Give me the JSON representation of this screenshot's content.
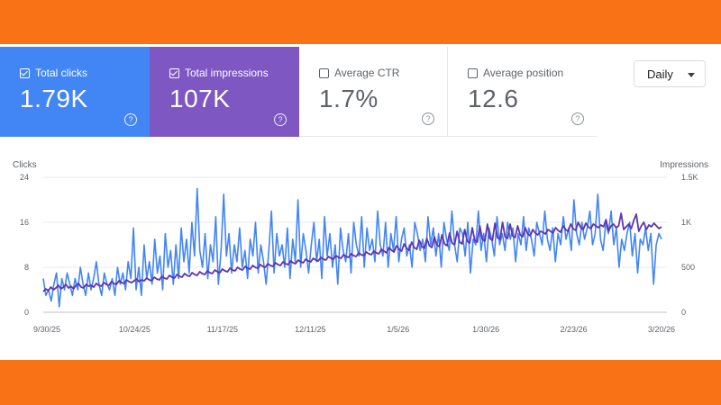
{
  "cards": [
    {
      "label": "Total clicks",
      "value": "1.79K",
      "checked": true
    },
    {
      "label": "Total impressions",
      "value": "107K",
      "checked": true
    },
    {
      "label": "Average CTR",
      "value": "1.7%",
      "checked": false
    },
    {
      "label": "Average position",
      "value": "12.6",
      "checked": false
    }
  ],
  "help_glyph": "?",
  "period_select": {
    "value": "Daily"
  },
  "colors": {
    "clicks": "#4285f4",
    "impressions": "#5e35b1",
    "frame": "#f97316"
  },
  "chart_data": {
    "type": "line",
    "y_left_label": "Clicks",
    "y_right_label": "Impressions",
    "y_left_ticks": [
      "24",
      "16",
      "8",
      "0"
    ],
    "y_right_ticks": [
      "1.5K",
      "1K",
      "500",
      "0"
    ],
    "ylim_left": [
      0,
      24
    ],
    "ylim_right": [
      0,
      1500
    ],
    "x_ticks": [
      "9/30/25",
      "10/24/25",
      "11/17/25",
      "12/11/25",
      "1/5/26",
      "1/30/26",
      "2/23/26",
      "3/20/26"
    ],
    "series": [
      {
        "name": "Clicks",
        "axis": "left",
        "values": [
          6,
          3,
          4,
          2,
          5,
          7,
          1,
          6,
          4,
          7,
          5,
          3,
          6,
          4,
          8,
          5,
          3,
          7,
          4,
          6,
          9,
          5,
          3,
          7,
          5,
          4,
          6,
          3,
          8,
          5,
          7,
          4,
          9,
          6,
          15,
          4,
          8,
          3,
          12,
          6,
          9,
          5,
          13,
          7,
          10,
          4,
          14,
          8,
          11,
          5,
          12,
          6,
          15,
          9,
          13,
          7,
          16,
          10,
          22,
          11,
          8,
          14,
          6,
          12,
          9,
          17,
          5,
          11,
          21,
          10,
          14,
          7,
          12,
          9,
          15,
          8,
          11,
          6,
          13,
          10,
          16,
          7,
          12,
          9,
          5,
          11,
          18,
          7,
          14,
          10,
          12,
          8,
          15,
          6,
          13,
          9,
          20,
          8,
          14,
          11,
          7,
          12,
          16,
          9,
          13,
          6,
          17,
          10,
          14,
          8,
          12,
          5,
          15,
          11,
          9,
          14,
          7,
          16,
          12,
          10,
          17,
          8,
          15,
          11,
          13,
          9,
          18,
          12,
          10,
          16,
          8,
          14,
          11,
          17,
          9,
          13,
          15,
          10,
          12,
          8,
          16,
          14,
          11,
          13,
          9,
          17,
          12,
          15,
          10,
          14,
          8,
          16,
          13,
          11,
          18,
          12,
          9,
          15,
          14,
          10,
          16,
          7,
          13,
          12,
          18,
          11,
          14,
          9,
          15,
          13,
          10,
          17,
          12,
          14,
          11,
          16,
          13,
          15,
          9,
          14,
          12,
          17,
          11,
          15,
          13,
          10,
          16,
          14,
          12,
          18,
          13,
          11,
          15,
          9,
          14,
          12,
          17,
          13,
          15,
          11,
          20,
          14,
          12,
          16,
          13,
          15,
          18,
          12,
          14,
          21,
          13,
          11,
          16,
          14,
          18,
          12,
          15,
          8,
          13,
          11,
          14,
          16,
          10,
          14,
          7,
          13,
          12,
          15,
          11,
          14,
          5,
          12,
          14,
          13
        ]
      },
      {
        "name": "Impressions",
        "axis": "right",
        "values": [
          230,
          260,
          240,
          280,
          250,
          270,
          300,
          260,
          280,
          310,
          270,
          290,
          260,
          300,
          320,
          280,
          270,
          310,
          290,
          300,
          280,
          320,
          300,
          290,
          330,
          310,
          300,
          340,
          320,
          310,
          350,
          330,
          320,
          360,
          340,
          330,
          350,
          370,
          340,
          360,
          350,
          380,
          360,
          350,
          390,
          370,
          360,
          400,
          380,
          370,
          410,
          390,
          380,
          420,
          400,
          390,
          430,
          410,
          400,
          440,
          420,
          410,
          450,
          430,
          420,
          460,
          440,
          430,
          470,
          450,
          440,
          480,
          460,
          450,
          490,
          470,
          460,
          500,
          480,
          470,
          510,
          490,
          480,
          520,
          500,
          490,
          530,
          510,
          500,
          540,
          520,
          510,
          550,
          530,
          520,
          560,
          540,
          530,
          570,
          550,
          540,
          580,
          560,
          550,
          590,
          570,
          560,
          600,
          580,
          570,
          610,
          590,
          580,
          620,
          600,
          590,
          630,
          610,
          600,
          640,
          620,
          610,
          650,
          630,
          620,
          660,
          640,
          630,
          670,
          650,
          640,
          680,
          660,
          650,
          700,
          680,
          660,
          720,
          690,
          670,
          740,
          700,
          680,
          760,
          710,
          690,
          780,
          720,
          700,
          800,
          730,
          710,
          820,
          740,
          720,
          840,
          750,
          730,
          860,
          760,
          740,
          880,
          770,
          750,
          900,
          780,
          760,
          920,
          790,
          770,
          940,
          800,
          780,
          960,
          810,
          790,
          980,
          820,
          800,
          990,
          830,
          810,
          1000,
          840,
          820,
          980,
          850,
          830,
          960,
          860,
          840,
          940,
          870,
          850,
          920,
          880,
          860,
          900,
          890,
          870,
          920,
          900,
          880,
          940,
          910,
          890,
          960,
          920,
          900,
          980,
          930,
          910,
          1000,
          940,
          920,
          990,
          950,
          930,
          980,
          960,
          940,
          970,
          950,
          1030,
          900,
          960,
          980,
          940,
          960,
          1100,
          920,
          950,
          980,
          930,
          1020,
          1090,
          900,
          960,
          1000,
          920,
          970,
          950,
          990,
          960,
          930,
          950
        ]
      }
    ]
  }
}
